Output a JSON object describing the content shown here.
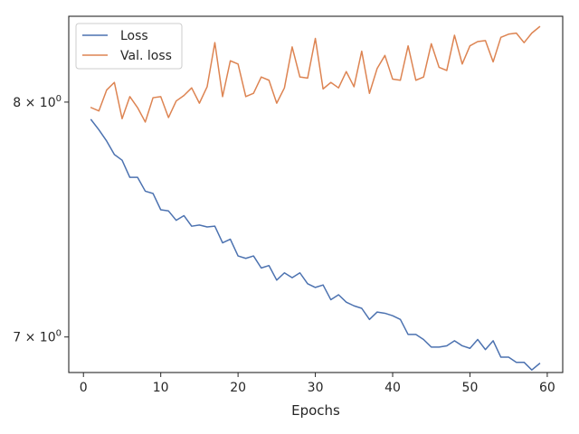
{
  "chart_data": {
    "type": "line",
    "xlabel": "Epochs",
    "ylabel": "",
    "yscale": "log",
    "xlim": [
      -1.9,
      62
    ],
    "ylim": [
      6.86,
      8.4
    ],
    "grid": false,
    "legend_position": "top-left",
    "x_ticks": [
      0,
      10,
      20,
      30,
      40,
      50,
      60
    ],
    "y_ticks": [
      {
        "value": 7,
        "label": "7 × 10^0"
      },
      {
        "value": 8,
        "label": "8 × 10^0"
      }
    ],
    "x": [
      1,
      2,
      3,
      4,
      5,
      6,
      7,
      8,
      9,
      10,
      11,
      12,
      13,
      14,
      15,
      16,
      17,
      18,
      19,
      20,
      21,
      22,
      23,
      24,
      25,
      26,
      27,
      28,
      29,
      30,
      31,
      32,
      33,
      34,
      35,
      36,
      37,
      38,
      39,
      40,
      41,
      42,
      43,
      44,
      45,
      46,
      47,
      48,
      49,
      50,
      51,
      52,
      53,
      54,
      55,
      56,
      57,
      58,
      59
    ],
    "series": [
      {
        "name": "Loss",
        "color": "#4c72b0",
        "values": [
          7.92,
          7.875,
          7.825,
          7.765,
          7.74,
          7.665,
          7.665,
          7.605,
          7.595,
          7.525,
          7.52,
          7.48,
          7.5,
          7.455,
          7.46,
          7.452,
          7.455,
          7.385,
          7.4,
          7.33,
          7.32,
          7.33,
          7.28,
          7.29,
          7.23,
          7.26,
          7.24,
          7.26,
          7.215,
          7.2,
          7.21,
          7.15,
          7.17,
          7.14,
          7.125,
          7.115,
          7.07,
          7.1,
          7.095,
          7.085,
          7.07,
          7.01,
          7.01,
          6.99,
          6.96,
          6.96,
          6.965,
          6.985,
          6.965,
          6.955,
          6.99,
          6.95,
          6.985,
          6.92,
          6.92,
          6.9,
          6.9,
          6.87,
          6.895
        ]
      },
      {
        "name": "Val. loss",
        "color": "#dd8452",
        "values": [
          7.975,
          7.96,
          8.055,
          8.09,
          7.925,
          8.025,
          7.975,
          7.91,
          8.02,
          8.025,
          7.93,
          8.005,
          8.03,
          8.065,
          7.995,
          8.07,
          8.275,
          8.025,
          8.19,
          8.175,
          8.025,
          8.04,
          8.115,
          8.1,
          7.995,
          8.065,
          8.255,
          8.115,
          8.11,
          8.295,
          8.06,
          8.09,
          8.065,
          8.14,
          8.07,
          8.235,
          8.04,
          8.155,
          8.215,
          8.105,
          8.1,
          8.26,
          8.1,
          8.115,
          8.27,
          8.16,
          8.145,
          8.31,
          8.175,
          8.26,
          8.28,
          8.285,
          8.185,
          8.3,
          8.315,
          8.32,
          8.275,
          8.32,
          8.35
        ]
      }
    ]
  }
}
